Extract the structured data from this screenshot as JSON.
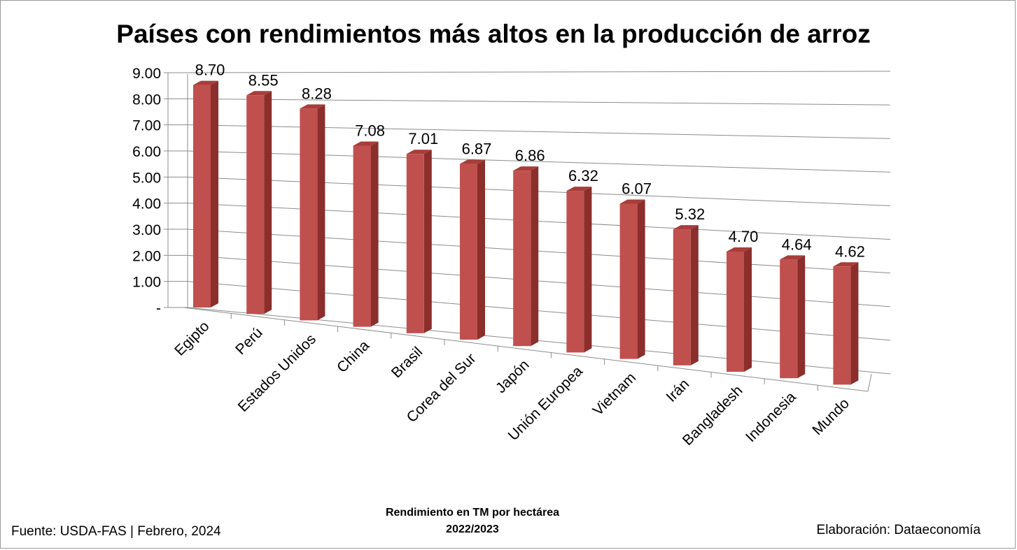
{
  "chart_data": {
    "type": "bar",
    "title": "Países con rendimientos más altos en la producción de arroz",
    "categories": [
      "Egipto",
      "Perú",
      "Estados Unidos",
      "China",
      "Brasil",
      "Corea del Sur",
      "Japón",
      "Unión Europea",
      "Vietnam",
      "Irán",
      "Bangladesh",
      "Indonesia",
      "Mundo"
    ],
    "values": [
      8.7,
      8.55,
      8.28,
      7.08,
      7.01,
      6.87,
      6.86,
      6.32,
      6.07,
      5.32,
      4.7,
      4.64,
      4.62
    ],
    "data_labels": [
      "8.70",
      "8.55",
      "8.28",
      "7.08",
      "7.01",
      "6.87",
      "6.86",
      "6.32",
      "6.07",
      "5.32",
      "4.70",
      "4.64",
      "4.62"
    ],
    "y_tick_labels": [
      "-",
      "1.00",
      "2.00",
      "3.00",
      "4.00",
      "5.00",
      "6.00",
      "7.00",
      "8.00",
      "9.00"
    ],
    "ylim": [
      0,
      9
    ],
    "grid": true,
    "style": "3d-perspective",
    "bar_color": "#c0504d",
    "bar_side_color": "#8b2e2c",
    "bar_top_color": "#a83d3a",
    "xlabel": "",
    "ylabel": ""
  },
  "caption": {
    "line1": "Rendimiento en TM por hectárea",
    "line2": "2022/2023"
  },
  "footer": {
    "source": "Fuente:  USDA-FAS | Febrero, 2024",
    "credit": "Elaboración: Dataeconomía"
  }
}
